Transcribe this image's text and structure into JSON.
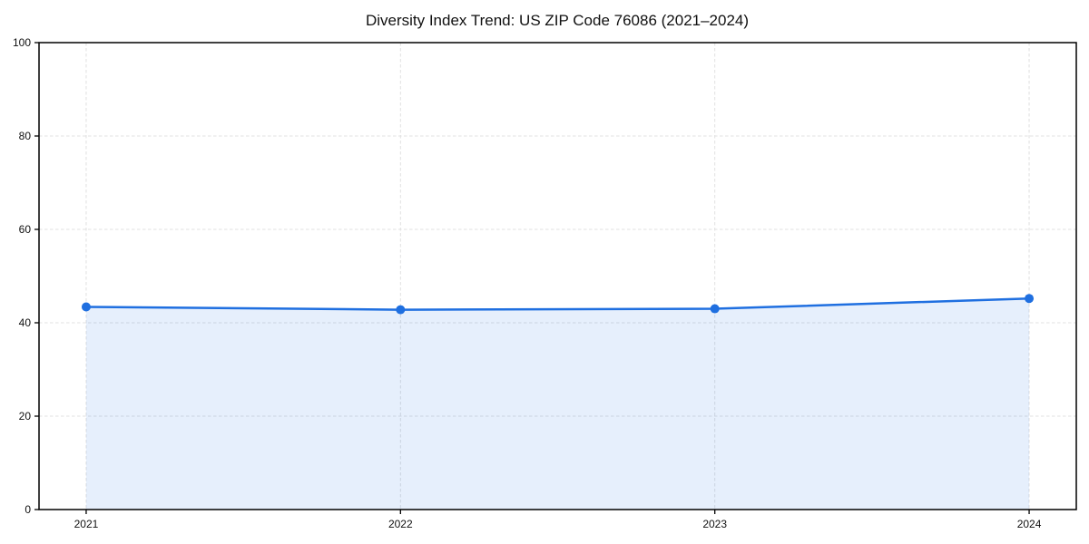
{
  "chart_data": {
    "type": "line",
    "title": "Diversity Index Trend: US ZIP Code 76086 (2021–2024)",
    "xlabel": "",
    "ylabel": "",
    "x": [
      2021,
      2022,
      2023,
      2024
    ],
    "series": [
      {
        "name": "Diversity Index",
        "values": [
          43.4,
          42.8,
          43.0,
          45.2
        ]
      }
    ],
    "xtick_labels": [
      "2021",
      "2022",
      "2023",
      "2024"
    ],
    "yticks": [
      0,
      20,
      40,
      60,
      80,
      100
    ],
    "ylim": [
      0,
      100
    ],
    "x_margin_frac": 0.05,
    "grid": true,
    "grid_style": "dashed",
    "legend_position": "none",
    "area_fill": true,
    "colors": {
      "line": "#1f6fe0",
      "marker": "#1f6fe0",
      "fill": "#1f6fe0",
      "fill_opacity": 0.11,
      "grid": "#e0e0e0",
      "spine": "#000000",
      "text": "#111111",
      "background": "#ffffff"
    },
    "marker": "circle",
    "marker_radius": 5,
    "line_width": 2.5
  }
}
